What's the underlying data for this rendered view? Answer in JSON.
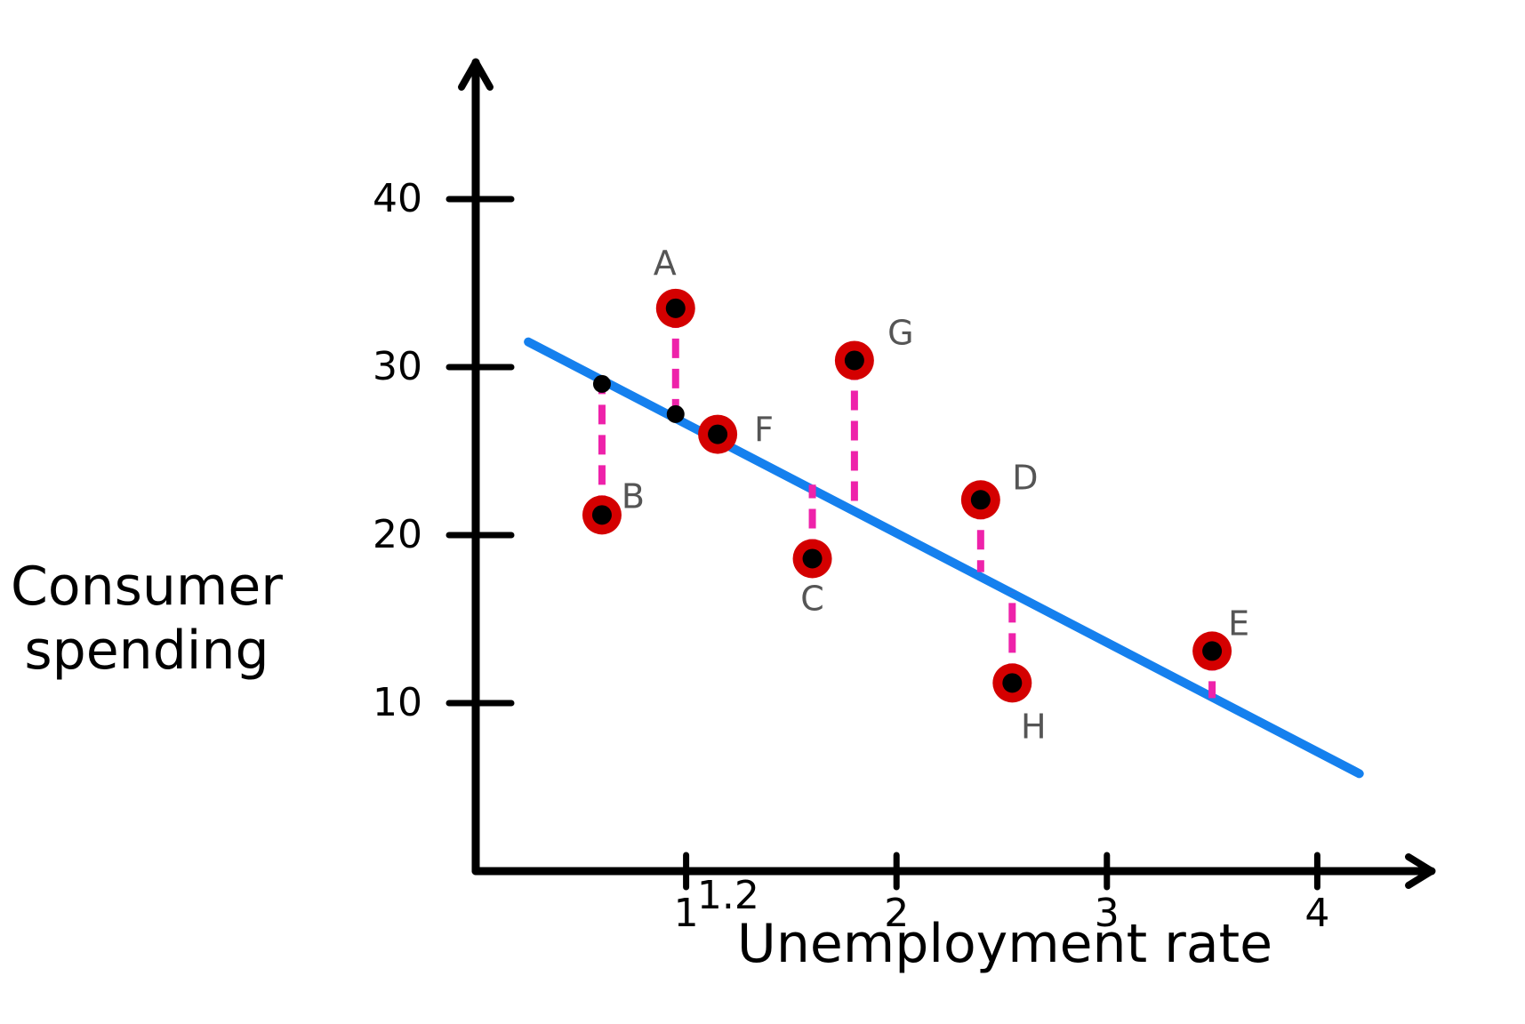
{
  "chart_data": {
    "type": "scatter",
    "title": "",
    "xlabel": "Unemployment rate",
    "ylabel": "Consumer spending",
    "xlim": [
      0,
      4.3
    ],
    "ylim": [
      0,
      46
    ],
    "x_ticks": [
      {
        "value": 1,
        "label": "1"
      },
      {
        "value": 1.2,
        "label": "1.2"
      },
      {
        "value": 2,
        "label": "2"
      },
      {
        "value": 3,
        "label": "3"
      },
      {
        "value": 4,
        "label": "4"
      }
    ],
    "y_ticks": [
      {
        "value": 10,
        "label": "10"
      },
      {
        "value": 20,
        "label": "20"
      },
      {
        "value": 30,
        "label": "30"
      },
      {
        "value": 40,
        "label": "40"
      }
    ],
    "grid": false,
    "regression_line": {
      "x": [
        0.25,
        4.2
      ],
      "y": [
        31.5,
        5.8
      ],
      "color": "#1580ee"
    },
    "points": [
      {
        "label": "B",
        "x": 0.6,
        "y": 21.2,
        "fit": 29.0
      },
      {
        "label": "A",
        "x": 0.95,
        "y": 33.5,
        "fit": 27.2
      },
      {
        "label": "F",
        "x": 1.15,
        "y": 26.0,
        "fit": 26.0
      },
      {
        "label": "C",
        "x": 1.6,
        "y": 18.6,
        "fit": 23.0
      },
      {
        "label": "G",
        "x": 1.8,
        "y": 30.4,
        "fit": 21.8
      },
      {
        "label": "D",
        "x": 2.4,
        "y": 22.1,
        "fit": 17.8
      },
      {
        "label": "H",
        "x": 2.55,
        "y": 11.2,
        "fit": 16.6
      },
      {
        "label": "E",
        "x": 3.5,
        "y": 13.1,
        "fit": 10.3
      }
    ],
    "colors": {
      "axis": "#000000",
      "point_fill": "#d40000",
      "point_center": "#000000",
      "residual": "#ee22aa",
      "line": "#1580ee"
    }
  }
}
